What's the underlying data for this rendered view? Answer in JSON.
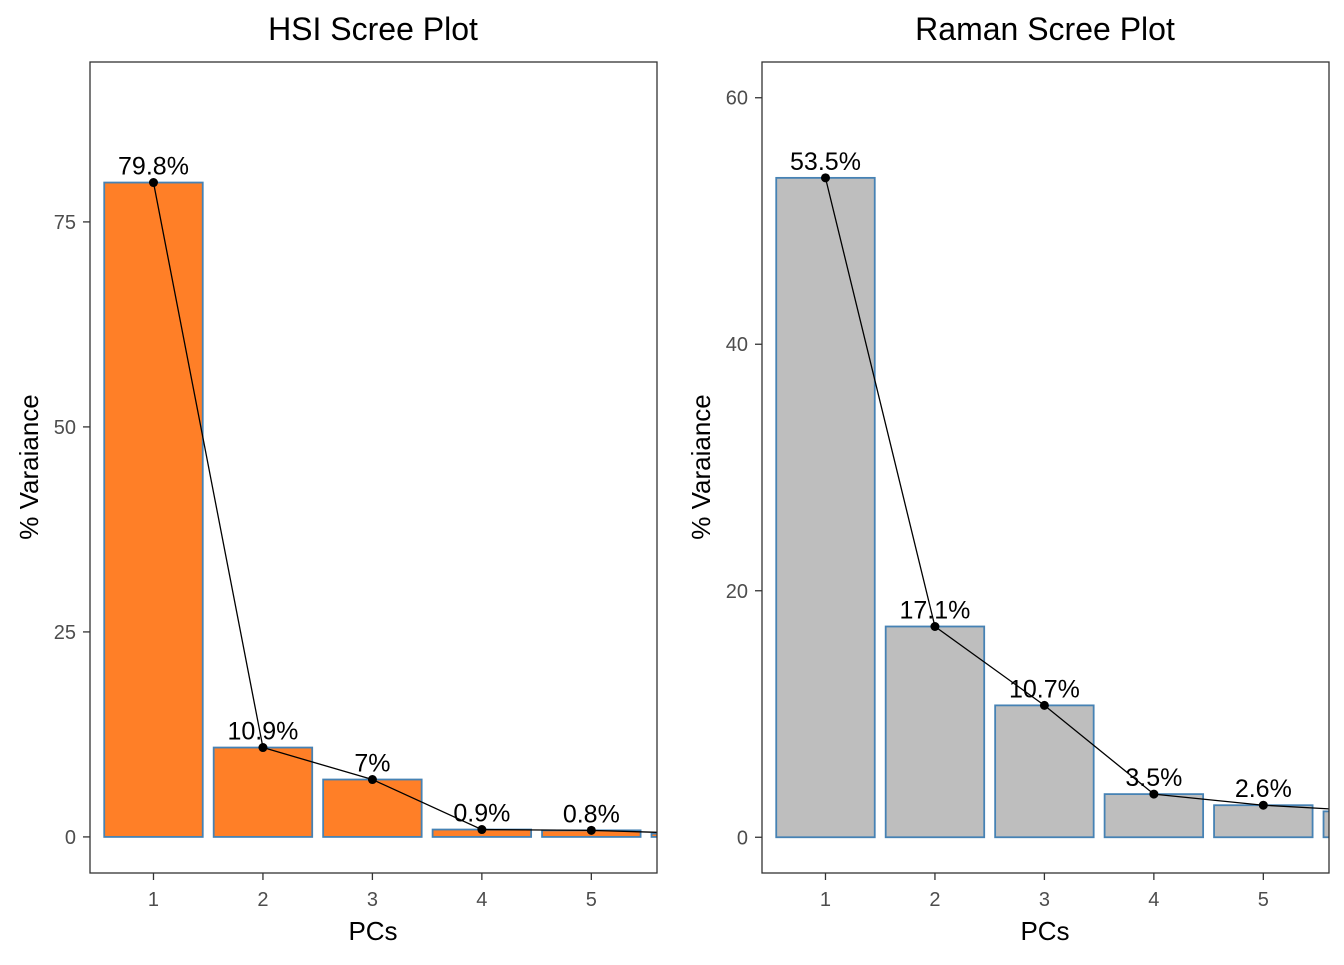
{
  "chart_data": [
    {
      "type": "bar",
      "title": "HSI Scree Plot",
      "xlabel": "PCs",
      "ylabel": "% Varaiance",
      "categories": [
        "1",
        "2",
        "3",
        "4",
        "5"
      ],
      "values": [
        79.8,
        10.9,
        7.0,
        0.9,
        0.8
      ],
      "labels": [
        "79.8%",
        "10.9%",
        "7%",
        "0.9%",
        "0.8%"
      ],
      "partial_next_value": 0.4,
      "yticks": [
        "0",
        "25",
        "50",
        "75"
      ],
      "ylim": [
        -4.4,
        94.5
      ],
      "xlim": [
        0.42,
        5.6
      ],
      "bar_fill": "#FF7F27",
      "bar_stroke": "#4682B4",
      "line_color": "#000000",
      "grid": false
    },
    {
      "type": "bar",
      "title": "Raman Scree Plot",
      "xlabel": "PCs",
      "ylabel": "% Varaiance",
      "categories": [
        "1",
        "2",
        "3",
        "4",
        "5"
      ],
      "values": [
        53.5,
        17.1,
        10.7,
        3.5,
        2.6
      ],
      "labels": [
        "53.5%",
        "17.1%",
        "10.7%",
        "3.5%",
        "2.6%"
      ],
      "partial_next_value": 2.1,
      "yticks": [
        "0",
        "20",
        "40",
        "60"
      ],
      "ylim": [
        -2.9,
        62.9
      ],
      "xlim": [
        0.42,
        5.6
      ],
      "bar_fill": "#BEBEBE",
      "bar_stroke": "#4682B4",
      "line_color": "#000000",
      "grid": false
    }
  ]
}
